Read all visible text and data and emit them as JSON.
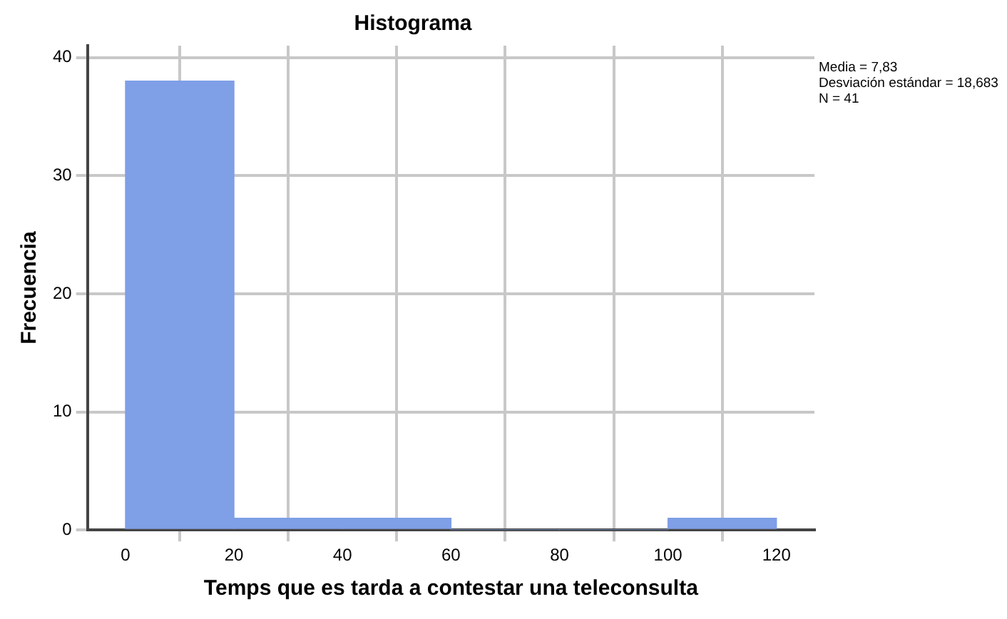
{
  "chart_data": {
    "type": "histogram",
    "title": "Histograma",
    "xlabel": "Temps que es tarda a contestar una teleconsulta",
    "ylabel": "Frecuencia",
    "bins": [
      0,
      20,
      40,
      60,
      80,
      100,
      120
    ],
    "values": [
      38,
      1,
      1,
      0,
      0,
      1
    ],
    "color": "#7f9fe6",
    "xlim": [
      -7,
      127
    ],
    "xticks": [
      0,
      20,
      40,
      60,
      80,
      100,
      120
    ],
    "ylim": [
      0,
      41
    ],
    "yticks": [
      0,
      10,
      20,
      30,
      40
    ],
    "grid": true,
    "legend": false,
    "annotations": [
      "Media = 7,83",
      "Desviación estándar = 18,683",
      "N = 41"
    ]
  }
}
